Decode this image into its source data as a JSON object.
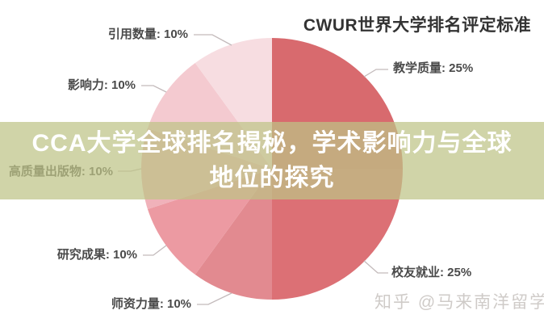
{
  "page": {
    "background_color": "#ffffff"
  },
  "title": {
    "text": "CWUR世界大学排名评定标准",
    "color": "#333333"
  },
  "banner": {
    "line1": "CCA大学全球排名揭秘，学术影响力与全球",
    "line2": "地位的探究",
    "bg_color": "rgba(190,195,135,0.72)",
    "text_color": "#ffffff"
  },
  "watermark": {
    "text": "知乎 @马来南洋留学",
    "color": "#cfcbc8"
  },
  "chart_data": {
    "type": "pie",
    "title": "CWUR世界大学排名评定标准",
    "legend_position": "none",
    "start_angle_deg": 0,
    "clockwise": true,
    "label_color": "#4a4a4a",
    "leader_line_color": "#c3babb",
    "slices": [
      {
        "name": "教学质量",
        "value": 25,
        "label": "教学质量: 25%",
        "color": "#d86a6e",
        "side": "right"
      },
      {
        "name": "校友就业",
        "value": 25,
        "label": "校友就业: 25%",
        "color": "#dc7075",
        "side": "right"
      },
      {
        "name": "师资力量",
        "value": 10,
        "label": "师资力量: 10%",
        "color": "#e28a90",
        "side": "left"
      },
      {
        "name": "研究成果",
        "value": 10,
        "label": "研究成果: 10%",
        "color": "#ec9aa2",
        "side": "left"
      },
      {
        "name": "高质量出版物",
        "value": 10,
        "label": "高质量出版物: 10%",
        "color": "#f0b2ba",
        "side": "left"
      },
      {
        "name": "影响力",
        "value": 10,
        "label": "影响力: 10%",
        "color": "#f4cad0",
        "side": "left"
      },
      {
        "name": "引用数量",
        "value": 10,
        "label": "引用数量: 10%",
        "color": "#f7dde1",
        "side": "left"
      }
    ]
  }
}
